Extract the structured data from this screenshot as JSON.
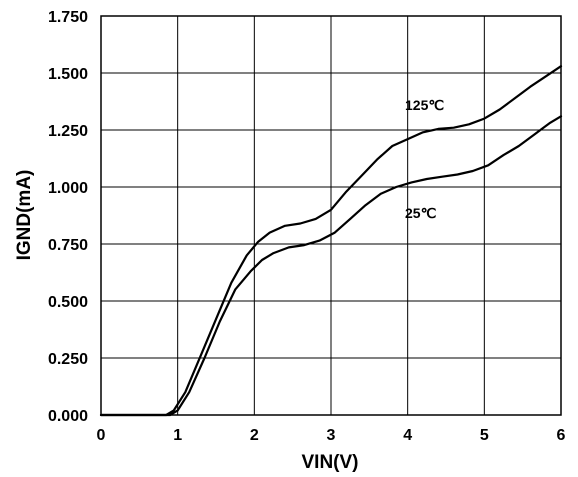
{
  "chart_data": {
    "type": "line",
    "title": "",
    "xlabel": "VIN(V)",
    "ylabel": "IGND(mA)",
    "xlim": [
      0,
      6
    ],
    "ylim": [
      0,
      1.75
    ],
    "grid": true,
    "x_ticks": [
      "0",
      "1",
      "2",
      "3",
      "4",
      "5",
      "6"
    ],
    "y_ticks": [
      "0.000",
      "0.250",
      "0.500",
      "0.750",
      "1.000",
      "1.250",
      "1.500",
      "1.750"
    ],
    "series": [
      {
        "name": "125℃",
        "x": [
          0,
          0.85,
          0.95,
          1.1,
          1.3,
          1.5,
          1.7,
          1.9,
          2.05,
          2.2,
          2.4,
          2.6,
          2.8,
          3.0,
          3.2,
          3.4,
          3.6,
          3.8,
          4.0,
          4.2,
          4.4,
          4.6,
          4.8,
          5.0,
          5.2,
          5.4,
          5.6,
          5.8,
          6.0
        ],
        "y": [
          0,
          0,
          0.02,
          0.1,
          0.26,
          0.42,
          0.58,
          0.7,
          0.76,
          0.8,
          0.83,
          0.84,
          0.86,
          0.9,
          0.98,
          1.05,
          1.12,
          1.18,
          1.21,
          1.24,
          1.255,
          1.26,
          1.275,
          1.3,
          1.34,
          1.39,
          1.44,
          1.485,
          1.53
        ]
      },
      {
        "name": "25℃",
        "x": [
          0,
          0.9,
          1.0,
          1.15,
          1.35,
          1.55,
          1.75,
          1.95,
          2.1,
          2.25,
          2.45,
          2.65,
          2.85,
          3.05,
          3.25,
          3.45,
          3.65,
          3.85,
          4.05,
          4.25,
          4.45,
          4.65,
          4.85,
          5.05,
          5.25,
          5.45,
          5.65,
          5.85,
          6.0
        ],
        "y": [
          0,
          0,
          0.02,
          0.1,
          0.25,
          0.41,
          0.55,
          0.63,
          0.68,
          0.71,
          0.735,
          0.745,
          0.765,
          0.8,
          0.86,
          0.92,
          0.97,
          1.0,
          1.02,
          1.035,
          1.045,
          1.055,
          1.07,
          1.095,
          1.14,
          1.18,
          1.23,
          1.28,
          1.31
        ]
      }
    ]
  }
}
